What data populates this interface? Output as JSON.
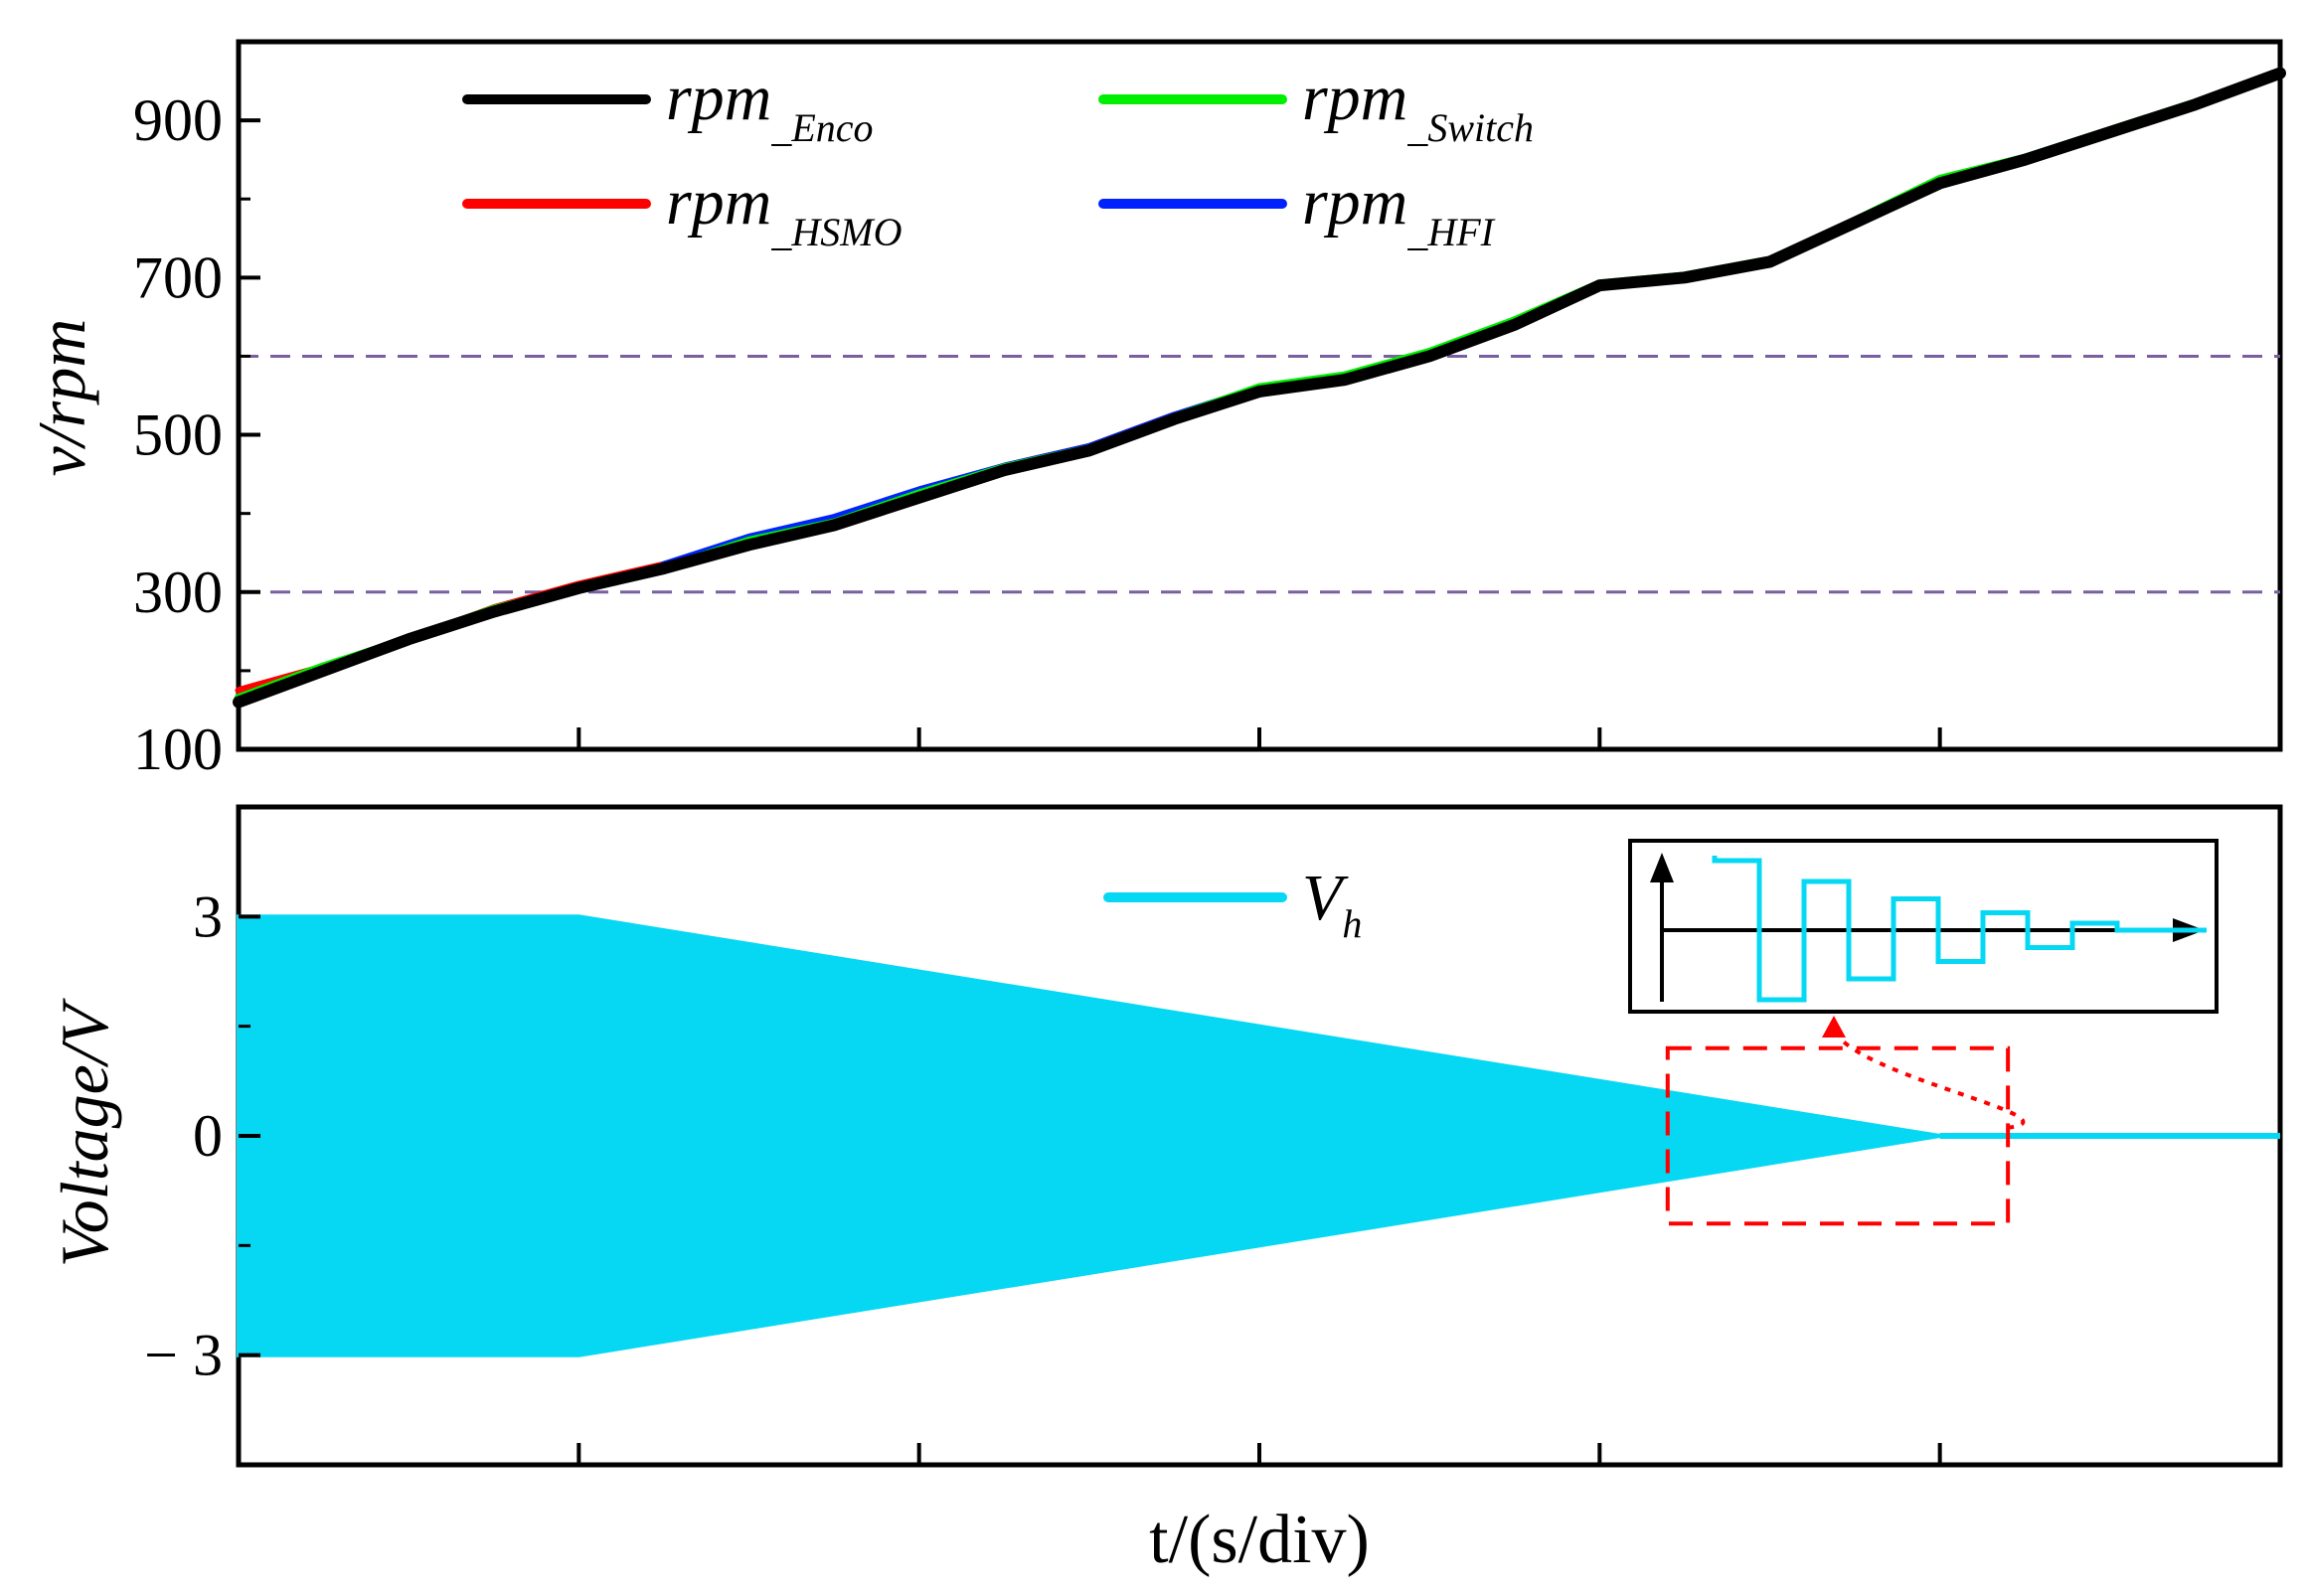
{
  "chart_data": [
    {
      "type": "line",
      "ylabel": "v/rpm",
      "ylim": [
        100,
        1000
      ],
      "yticks": [
        100,
        300,
        500,
        700,
        900
      ],
      "x_divisions": 6,
      "grid": false,
      "reference_lines": [
        300,
        600
      ],
      "legend_placement": "top-left",
      "series": [
        {
          "name": "rpm",
          "subscript": "_Enco",
          "color": "#000000",
          "x": [
            0,
            0.25,
            0.5,
            0.75,
            1.0,
            1.25,
            1.5,
            1.75,
            2.0,
            2.25,
            2.5,
            2.75,
            3.0,
            3.25,
            3.5,
            3.75,
            4.0,
            4.25,
            4.5,
            4.75,
            5.0,
            5.25,
            5.5,
            5.75,
            6.0
          ],
          "y": [
            160,
            200,
            240,
            275,
            305,
            330,
            360,
            385,
            420,
            455,
            480,
            520,
            555,
            570,
            600,
            640,
            690,
            700,
            720,
            770,
            820,
            850,
            885,
            920,
            960
          ]
        },
        {
          "name": "rpm",
          "subscript": "_Switch",
          "color": "#00ee00",
          "x": [
            0,
            0.25,
            0.5,
            0.75,
            1.0,
            1.25,
            1.5,
            1.75,
            2.0,
            2.25,
            2.5,
            2.75,
            3.0,
            3.25,
            3.5,
            3.75,
            4.0,
            4.25,
            4.5,
            4.75,
            5.0,
            5.25,
            5.5,
            5.75,
            6.0
          ],
          "y": [
            165,
            205,
            240,
            278,
            305,
            330,
            365,
            388,
            425,
            458,
            482,
            522,
            560,
            575,
            605,
            645,
            692,
            702,
            722,
            772,
            825,
            852,
            887,
            922,
            962
          ]
        },
        {
          "name": "rpm",
          "subscript": "_HSMO",
          "color": "#ff0000",
          "x": [
            0,
            0.25,
            0.5,
            0.75,
            1.0,
            1.25,
            1.5,
            1.75,
            2.0,
            2.25,
            2.5,
            2.75
          ],
          "y": [
            175,
            205,
            240,
            280,
            310,
            335,
            365,
            390,
            425,
            460,
            485,
            525
          ]
        },
        {
          "name": "rpm",
          "subscript": "_HFI",
          "color": "#0022ff",
          "x": [
            1.25,
            1.5,
            1.75,
            2.0,
            2.25,
            2.5,
            2.75,
            3.0,
            3.25,
            3.5,
            3.75,
            4.0,
            4.25,
            4.5,
            4.75,
            5.0,
            5.25,
            5.5,
            5.75,
            6.0
          ],
          "y": [
            335,
            370,
            395,
            430,
            460,
            485,
            525,
            560,
            575,
            605,
            645,
            690,
            702,
            722,
            772,
            825,
            852,
            887,
            922,
            962
          ]
        }
      ]
    },
    {
      "type": "area",
      "ylabel": "Voltage/V",
      "xlabel": "t/(s/div)",
      "ylim": [
        -4.5,
        4.5
      ],
      "yticks": [
        3,
        0,
        -3
      ],
      "ytick_labels": [
        "3",
        "0",
        "− 3"
      ],
      "x_divisions": 6,
      "grid": false,
      "legend_placement": "top-center",
      "series": [
        {
          "name": "V",
          "subscript": "h",
          "color": "#06d8f4",
          "envelope_x": [
            0,
            1.0,
            5.0,
            6.0
          ],
          "envelope_upper": [
            3,
            3,
            0,
            0
          ],
          "envelope_lower": [
            -3,
            -3,
            0,
            0
          ]
        }
      ],
      "annotation": {
        "zoom_box_x": [
          4.2,
          5.2
        ],
        "zoom_box_y": [
          -1.2,
          1.2
        ],
        "box_color": "#ff0000",
        "inset_wave_levels": [
          1.0,
          -1.0,
          0.7,
          -0.7,
          0.45,
          -0.45,
          0.25,
          -0.25,
          0.1,
          0,
          0
        ]
      }
    }
  ]
}
